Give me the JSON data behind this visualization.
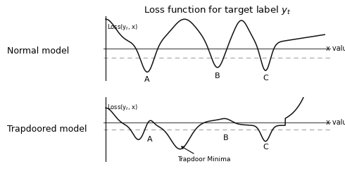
{
  "title": "Loss function for target label $y_t$",
  "title_fontsize": 9.5,
  "background_color": "#ffffff",
  "normal_label": "Normal model",
  "trapdoor_label": "Trapdoored model",
  "xlabel": "x value",
  "ylabel": "Loss(y$_t$, x)",
  "threshold_line_color": "#444444",
  "dashed_line_color": "#aaaaaa",
  "curve_color": "#111111",
  "annotation_text": "Trapdoor Minima",
  "label_A": "A",
  "label_B": "B",
  "label_C": "C",
  "threshold": 0.0,
  "dashed_level": -0.22
}
